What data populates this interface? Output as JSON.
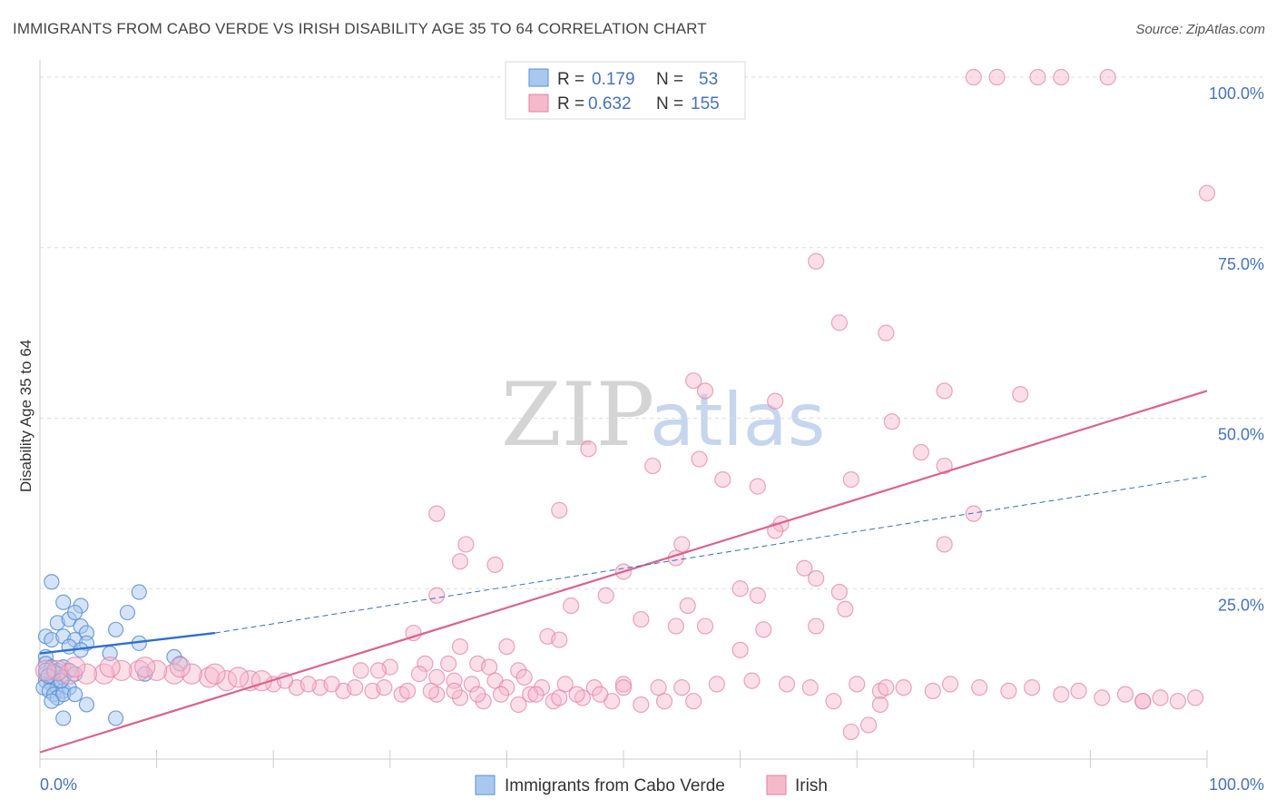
{
  "title": "IMMIGRANTS FROM CABO VERDE VS IRISH DISABILITY AGE 35 TO 64 CORRELATION CHART",
  "source": "Source: ZipAtlas.com",
  "watermark": {
    "zip": "ZIP",
    "atlas": "atlas"
  },
  "colors": {
    "blue_fill": "#a9c8f0",
    "blue_stroke": "#5b8fd6",
    "blue_line": "#2e6fd0",
    "pink_fill": "#f6b9cc",
    "pink_stroke": "#e57fa0",
    "pink_line": "#e0608e",
    "axis_text": "#4472c4",
    "grid": "#dddddd"
  },
  "legend": {
    "rows": [
      {
        "r_label": "R =",
        "r_value": "0.179",
        "n_label": "N =",
        "n_value": "53"
      },
      {
        "r_label": "R =",
        "r_value": "0.632",
        "n_label": "N =",
        "n_value": "155"
      }
    ]
  },
  "chart_data": {
    "type": "scatter",
    "title": "IMMIGRANTS FROM CABO VERDE VS IRISH DISABILITY AGE 35 TO 64 CORRELATION CHART",
    "xlabel": "",
    "ylabel": "Disability Age 35 to 64",
    "xlim": [
      0,
      100
    ],
    "ylim": [
      0,
      102
    ],
    "x_tick_labels": [
      "0.0%",
      "100.0%"
    ],
    "y_ticks": [
      25,
      50,
      75,
      100
    ],
    "y_tick_labels": [
      "25.0%",
      "50.0%",
      "75.0%",
      "100.0%"
    ],
    "grid": true,
    "legend_position": "top-center",
    "series": [
      {
        "name": "Immigrants from Cabo Verde",
        "color": "blue",
        "R": 0.179,
        "N": 53,
        "trend_solid": {
          "x": [
            0,
            15
          ],
          "y": [
            15.5,
            18.5
          ]
        },
        "trend_dashed": {
          "x": [
            15,
            100
          ],
          "y": [
            18.5,
            41.5
          ]
        },
        "points": [
          [
            1.0,
            26.0
          ],
          [
            2.0,
            23.0
          ],
          [
            3.5,
            22.5
          ],
          [
            1.5,
            20.0
          ],
          [
            2.5,
            20.5
          ],
          [
            3.0,
            21.5
          ],
          [
            3.5,
            19.5
          ],
          [
            4.0,
            18.5
          ],
          [
            6.5,
            19.0
          ],
          [
            7.5,
            21.5
          ],
          [
            8.5,
            24.5
          ],
          [
            0.5,
            18.0
          ],
          [
            1.0,
            17.5
          ],
          [
            2.0,
            18.0
          ],
          [
            3.0,
            17.5
          ],
          [
            4.0,
            17.0
          ],
          [
            2.5,
            16.5
          ],
          [
            3.5,
            16.0
          ],
          [
            8.5,
            17.0
          ],
          [
            6.0,
            15.5
          ],
          [
            11.5,
            15.0
          ],
          [
            12.0,
            14.0
          ],
          [
            0.5,
            15.0
          ],
          [
            0.5,
            14.0
          ],
          [
            1.0,
            13.5
          ],
          [
            1.5,
            13.0
          ],
          [
            2.0,
            13.5
          ],
          [
            2.5,
            13.0
          ],
          [
            0.5,
            12.5
          ],
          [
            1.0,
            12.0
          ],
          [
            1.5,
            12.5
          ],
          [
            2.0,
            12.0
          ],
          [
            3.0,
            12.5
          ],
          [
            0.5,
            11.5
          ],
          [
            1.0,
            11.0
          ],
          [
            1.5,
            10.5
          ],
          [
            0.3,
            10.5
          ],
          [
            0.8,
            10.0
          ],
          [
            1.2,
            9.5
          ],
          [
            2.0,
            10.0
          ],
          [
            2.5,
            10.5
          ],
          [
            1.5,
            9.0
          ],
          [
            2.0,
            9.5
          ],
          [
            1.0,
            8.5
          ],
          [
            3.0,
            9.5
          ],
          [
            4.0,
            8.0
          ],
          [
            2.0,
            6.0
          ],
          [
            6.5,
            6.0
          ],
          [
            0.5,
            13.0
          ],
          [
            1.2,
            12.8
          ],
          [
            0.7,
            12.2
          ],
          [
            9.0,
            12.5
          ],
          [
            1.8,
            11.5
          ]
        ]
      },
      {
        "name": "Irish",
        "color": "pink",
        "R": 0.632,
        "N": 155,
        "trend": {
          "x": [
            0,
            100
          ],
          "y": [
            1.0,
            54.0
          ]
        },
        "points": [
          [
            80.0,
            100.0
          ],
          [
            82.0,
            100.0
          ],
          [
            85.5,
            100.0
          ],
          [
            87.5,
            100.0
          ],
          [
            91.5,
            100.0
          ],
          [
            100.0,
            83.0
          ],
          [
            66.5,
            73.0
          ],
          [
            68.5,
            64.0
          ],
          [
            72.5,
            62.5
          ],
          [
            56.0,
            55.5
          ],
          [
            57.0,
            54.0
          ],
          [
            63.0,
            52.5
          ],
          [
            77.5,
            54.0
          ],
          [
            84.0,
            53.5
          ],
          [
            73.0,
            49.5
          ],
          [
            47.0,
            45.5
          ],
          [
            56.5,
            44.0
          ],
          [
            52.5,
            43.0
          ],
          [
            75.5,
            45.0
          ],
          [
            77.5,
            43.0
          ],
          [
            58.5,
            41.0
          ],
          [
            61.5,
            40.0
          ],
          [
            69.5,
            41.0
          ],
          [
            44.5,
            36.5
          ],
          [
            34.0,
            36.0
          ],
          [
            80.0,
            36.0
          ],
          [
            63.5,
            34.5
          ],
          [
            63.0,
            33.5
          ],
          [
            36.5,
            31.5
          ],
          [
            55.0,
            31.5
          ],
          [
            77.5,
            31.5
          ],
          [
            36.0,
            29.0
          ],
          [
            54.5,
            29.5
          ],
          [
            39.0,
            28.5
          ],
          [
            65.5,
            28.0
          ],
          [
            50.0,
            27.5
          ],
          [
            66.5,
            26.5
          ],
          [
            60.0,
            25.0
          ],
          [
            61.5,
            24.0
          ],
          [
            68.5,
            24.5
          ],
          [
            34.0,
            24.0
          ],
          [
            48.5,
            24.0
          ],
          [
            45.5,
            22.5
          ],
          [
            55.5,
            22.5
          ],
          [
            69.0,
            22.0
          ],
          [
            51.5,
            20.5
          ],
          [
            54.5,
            19.5
          ],
          [
            57.0,
            19.5
          ],
          [
            62.0,
            19.0
          ],
          [
            66.5,
            19.5
          ],
          [
            43.5,
            18.0
          ],
          [
            44.5,
            17.5
          ],
          [
            40.0,
            16.5
          ],
          [
            60.0,
            16.0
          ],
          [
            32.0,
            18.5
          ],
          [
            36.0,
            16.5
          ],
          [
            37.5,
            14.0
          ],
          [
            30.0,
            13.5
          ],
          [
            33.0,
            14.0
          ],
          [
            35.0,
            14.0
          ],
          [
            38.5,
            13.5
          ],
          [
            41.0,
            13.0
          ],
          [
            27.5,
            13.0
          ],
          [
            29.0,
            13.0
          ],
          [
            32.5,
            12.5
          ],
          [
            34.0,
            12.0
          ],
          [
            35.5,
            11.5
          ],
          [
            37.0,
            11.0
          ],
          [
            39.0,
            11.5
          ],
          [
            41.5,
            12.0
          ],
          [
            43.0,
            10.5
          ],
          [
            45.0,
            11.0
          ],
          [
            47.5,
            10.5
          ],
          [
            50.0,
            11.0
          ],
          [
            53.0,
            10.5
          ],
          [
            55.0,
            10.5
          ],
          [
            58.0,
            11.0
          ],
          [
            61.0,
            11.5
          ],
          [
            64.0,
            11.0
          ],
          [
            66.0,
            10.5
          ],
          [
            70.0,
            11.0
          ],
          [
            72.0,
            10.0
          ],
          [
            74.0,
            10.5
          ],
          [
            76.5,
            10.0
          ],
          [
            78.0,
            11.0
          ],
          [
            80.5,
            10.5
          ],
          [
            83.0,
            10.0
          ],
          [
            85.0,
            10.5
          ],
          [
            87.5,
            9.5
          ],
          [
            89.0,
            10.0
          ],
          [
            91.0,
            9.0
          ],
          [
            93.0,
            9.5
          ],
          [
            94.5,
            8.5
          ],
          [
            96.0,
            9.0
          ],
          [
            97.5,
            8.5
          ],
          [
            99.0,
            9.0
          ],
          [
            94.5,
            8.5
          ],
          [
            72.5,
            10.5
          ],
          [
            68.0,
            8.5
          ],
          [
            72.0,
            8.0
          ],
          [
            71.0,
            5.0
          ],
          [
            69.5,
            4.0
          ],
          [
            56.0,
            8.5
          ],
          [
            49.0,
            8.5
          ],
          [
            50.0,
            10.5
          ],
          [
            40.0,
            10.5
          ],
          [
            42.0,
            9.5
          ],
          [
            44.0,
            8.5
          ],
          [
            41.0,
            8.0
          ],
          [
            38.0,
            8.5
          ],
          [
            36.0,
            9.0
          ],
          [
            34.0,
            9.5
          ],
          [
            31.0,
            9.5
          ],
          [
            28.5,
            10.0
          ],
          [
            26.0,
            10.0
          ],
          [
            24.0,
            10.5
          ],
          [
            22.0,
            10.5
          ],
          [
            20.0,
            11.0
          ],
          [
            18.0,
            11.5
          ],
          [
            16.0,
            11.5
          ],
          [
            14.5,
            12.0
          ],
          [
            13.0,
            12.5
          ],
          [
            11.5,
            12.5
          ],
          [
            10.0,
            13.0
          ],
          [
            8.5,
            13.0
          ],
          [
            7.0,
            13.0
          ],
          [
            5.5,
            12.5
          ],
          [
            4.0,
            12.5
          ],
          [
            2.5,
            12.5
          ],
          [
            1.5,
            13.0
          ],
          [
            0.5,
            13.0
          ],
          [
            3.0,
            13.5
          ],
          [
            6.0,
            13.5
          ],
          [
            9.0,
            13.5
          ],
          [
            12.0,
            13.5
          ],
          [
            15.0,
            12.5
          ],
          [
            17.0,
            12.0
          ],
          [
            19.0,
            11.5
          ],
          [
            21.0,
            11.5
          ],
          [
            23.0,
            11.0
          ],
          [
            25.0,
            11.0
          ],
          [
            27.0,
            10.5
          ],
          [
            29.5,
            10.5
          ],
          [
            31.5,
            10.0
          ],
          [
            33.5,
            10.0
          ],
          [
            35.5,
            10.0
          ],
          [
            37.5,
            9.5
          ],
          [
            39.5,
            9.5
          ],
          [
            42.5,
            9.5
          ],
          [
            44.5,
            9.0
          ],
          [
            46.5,
            9.0
          ],
          [
            48.0,
            9.5
          ],
          [
            51.5,
            8.0
          ],
          [
            53.5,
            8.5
          ],
          [
            46.0,
            9.5
          ]
        ]
      }
    ]
  },
  "bottom_legend": [
    {
      "label": "Immigrants from Cabo Verde",
      "color": "blue"
    },
    {
      "label": "Irish",
      "color": "pink"
    }
  ]
}
